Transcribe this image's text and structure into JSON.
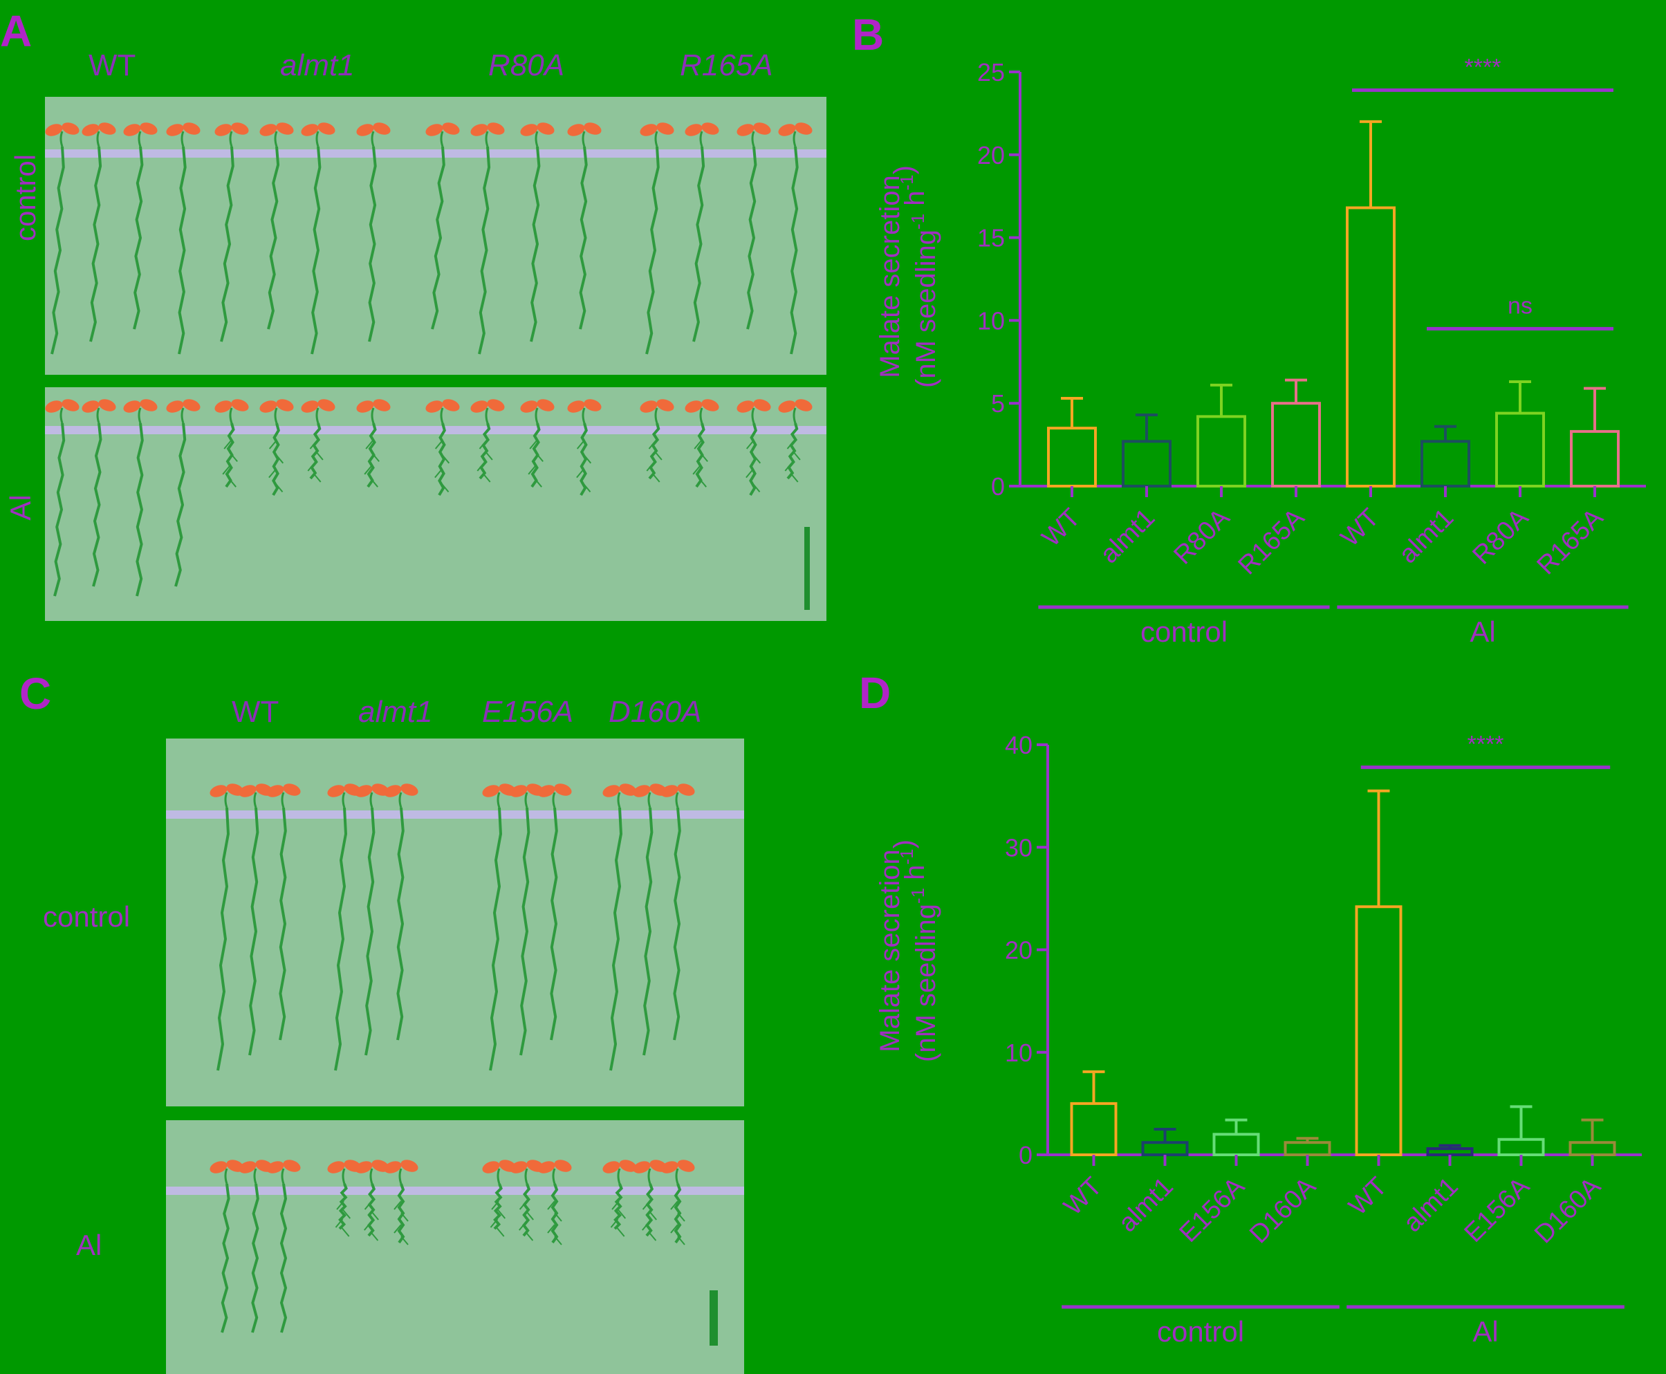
{
  "panels": {
    "A": {
      "letter": "A",
      "genotypes": [
        "WT",
        "almt1",
        "R80A",
        "R165A"
      ],
      "genotype_italic": [
        false,
        true,
        true,
        true
      ],
      "rows": [
        "control",
        "Al"
      ]
    },
    "C": {
      "letter": "C",
      "genotypes": [
        "WT",
        "almt1",
        "E156A",
        "D160A"
      ],
      "genotype_italic": [
        false,
        true,
        true,
        true
      ],
      "rows": [
        "control",
        "Al"
      ]
    }
  },
  "colors": {
    "background": "#009900",
    "axis": "#9933cc",
    "label_text": "#a030c0",
    "photo_bg": "#8fc49a",
    "root": "#2f9a3f",
    "leaf": "#f06a3a",
    "agar_line": "#c8b8f0",
    "scalebar": "#1f8f2f"
  },
  "chart_data": [
    {
      "panel": "B",
      "letter": "B",
      "type": "bar",
      "ylabel_line1": "Malate secretion",
      "ylabel_line2": "(nM seedling",
      "ylabel_sup1": "-1",
      "ylabel_mid": " h",
      "ylabel_sup2": "-1",
      "ylabel_end": ")",
      "ylim": [
        0,
        25
      ],
      "yticks": [
        0,
        5,
        10,
        15,
        20,
        25
      ],
      "categories": [
        "WT",
        "almt1",
        "R80A",
        "R165A",
        "WT",
        "almt1",
        "R80A",
        "R165A"
      ],
      "values": [
        3.5,
        2.7,
        4.2,
        5.0,
        16.8,
        2.7,
        4.4,
        3.3
      ],
      "errors": [
        1.8,
        1.6,
        1.9,
        1.4,
        5.2,
        0.9,
        1.9,
        2.6
      ],
      "bar_colors": [
        "#f5a623",
        "#1d4e5e",
        "#7ed321",
        "#e8708a",
        "#f5a623",
        "#1d4e5e",
        "#7ed321",
        "#e8708a"
      ],
      "groups": [
        {
          "label": "control",
          "from": 0,
          "to": 3
        },
        {
          "label": "Al",
          "from": 4,
          "to": 7
        }
      ],
      "annotations": [
        {
          "text": "****",
          "from": 4,
          "to": 7,
          "y": 23.9
        },
        {
          "text": "ns",
          "from": 5,
          "to": 7,
          "y": 9.5
        }
      ]
    },
    {
      "panel": "D",
      "letter": "D",
      "type": "bar",
      "ylabel_line1": "Malate secretion",
      "ylabel_line2": "(nM seedling",
      "ylabel_sup1": "-1",
      "ylabel_mid": " h",
      "ylabel_sup2": "-1",
      "ylabel_end": ")",
      "ylim": [
        0,
        40
      ],
      "yticks": [
        0,
        10,
        20,
        30,
        40
      ],
      "categories": [
        "WT",
        "almt1",
        "E156A",
        "D160A",
        "WT",
        "almt1",
        "E156A",
        "D160A"
      ],
      "values": [
        5.0,
        1.2,
        2.0,
        1.2,
        24.2,
        0.6,
        1.5,
        1.2
      ],
      "errors": [
        3.1,
        1.3,
        1.4,
        0.4,
        11.3,
        0.3,
        3.2,
        2.2
      ],
      "bar_colors": [
        "#f5a623",
        "#1d3f6e",
        "#66dd77",
        "#9a8a3a",
        "#f5a623",
        "#2a2a7a",
        "#66dd77",
        "#9a8a3a"
      ],
      "groups": [
        {
          "label": "control",
          "from": 0,
          "to": 3
        },
        {
          "label": "Al",
          "from": 4,
          "to": 7
        }
      ],
      "annotations": [
        {
          "text": "****",
          "from": 4,
          "to": 7,
          "y": 37.8
        }
      ]
    }
  ]
}
